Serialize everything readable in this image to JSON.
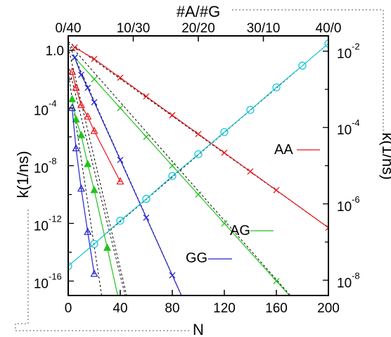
{
  "chart_data": {
    "type": "scatter",
    "top_axis_label": "#A/#G",
    "top_ticks": [
      "0/40",
      "10/30",
      "20/20",
      "30/10",
      "40/0"
    ],
    "x_label": "N",
    "x_ticks": [
      "0",
      "40",
      "80",
      "120",
      "160",
      "200"
    ],
    "x_range": [
      0,
      200
    ],
    "y_label_left": "k(1/ns)",
    "y_left_range_log10": [
      -17,
      1
    ],
    "y_left_ticks": [
      {
        "base": "1.0",
        "exp": ""
      },
      {
        "base": "10",
        "exp": "-4"
      },
      {
        "base": "10",
        "exp": "-8"
      },
      {
        "base": "10",
        "exp": "-12"
      },
      {
        "base": "10",
        "exp": "-16"
      }
    ],
    "y_label_right": "k(1/ns)",
    "y_right_range_log10": [
      -8.4,
      -1.6
    ],
    "y_right_ticks": [
      {
        "base": "10",
        "exp": "-2"
      },
      {
        "base": "10",
        "exp": "-4"
      },
      {
        "base": "10",
        "exp": "-6"
      },
      {
        "base": "10",
        "exp": "-8"
      }
    ],
    "series_labels": [
      {
        "text": "AA",
        "color": "#e8141a"
      },
      {
        "text": "AG",
        "color": "#22c21c"
      },
      {
        "text": "GG",
        "color": "#2222cc"
      }
    ],
    "series": [
      {
        "name": "AA",
        "axis": "left",
        "marker": "x",
        "color": "#e8141a",
        "linestyle": "solid",
        "x": [
          5,
          20,
          40,
          60,
          80,
          100,
          120,
          140,
          160,
          200
        ],
        "log10_y": [
          0.2,
          -0.6,
          -1.9,
          -3.2,
          -4.5,
          -5.8,
          -7.1,
          -8.4,
          -9.7,
          -12.3
        ]
      },
      {
        "name": "AG",
        "axis": "left",
        "marker": "x",
        "color": "#22c21c",
        "linestyle": "solid",
        "x": [
          5,
          20,
          40,
          60,
          80,
          100,
          120,
          160,
          200
        ],
        "log10_y": [
          -0.5,
          -2.0,
          -4.0,
          -6.0,
          -8.0,
          -10.0,
          -12.0,
          -16.0,
          -20.0
        ]
      },
      {
        "name": "GG",
        "axis": "left",
        "marker": "x",
        "color": "#2222cc",
        "linestyle": "solid",
        "x": [
          5,
          10,
          15,
          20,
          40,
          60,
          80,
          100
        ],
        "log10_y": [
          -0.5,
          -1.7,
          -2.6,
          -3.6,
          -7.6,
          -11.6,
          -15.6,
          -19.6
        ]
      },
      {
        "name": "",
        "axis": "left",
        "marker": "triangle-open",
        "color": "#e8141a",
        "linestyle": "solid",
        "x": [
          3,
          6,
          10,
          15,
          20,
          40
        ],
        "log10_y": [
          -1.5,
          -2.6,
          -3.8,
          -4.6,
          -5.6,
          -9.1
        ]
      },
      {
        "name": "",
        "axis": "left",
        "marker": "triangle-filled",
        "color": "#22c21c",
        "linestyle": "solid",
        "x": [
          3,
          6,
          10,
          15,
          20,
          30,
          40
        ],
        "log10_y": [
          -3.4,
          -4.8,
          -5.9,
          -7.9,
          -9.7,
          -13.7,
          -17.8
        ]
      },
      {
        "name": "",
        "axis": "left",
        "marker": "triangle-open",
        "color": "#2222cc",
        "linestyle": "solid",
        "x": [
          3,
          6,
          10,
          15,
          20
        ],
        "log10_y": [
          -4.0,
          -6.8,
          -9.6,
          -12.6,
          -15.5
        ]
      },
      {
        "name": "",
        "axis": "right",
        "marker": "circle-open",
        "color": "#1cc8d8",
        "linestyle": "solid",
        "x": [
          0,
          20,
          40,
          60,
          80,
          100,
          120,
          140,
          160,
          180,
          200
        ],
        "log10_y": [
          -7.63,
          -7.05,
          -6.44,
          -5.87,
          -5.27,
          -4.7,
          -4.12,
          -3.54,
          -2.95,
          -2.38,
          -1.8
        ]
      }
    ],
    "fit_lines": [
      {
        "axis": "left",
        "x": [
          0,
          200
        ],
        "log10_y": [
          0.6,
          -12.3
        ]
      },
      {
        "axis": "left",
        "x": [
          0,
          200
        ],
        "log10_y": [
          0.5,
          -20.0
        ]
      },
      {
        "axis": "left",
        "x": [
          0,
          100
        ],
        "log10_y": [
          0.5,
          -19.6
        ]
      },
      {
        "axis": "left",
        "x": [
          0,
          47
        ],
        "log10_y": [
          0.2,
          -17.8
        ]
      },
      {
        "axis": "left",
        "x": [
          0,
          46
        ],
        "log10_y": [
          -1.0,
          -17.8
        ]
      },
      {
        "axis": "left",
        "x": [
          0,
          27
        ],
        "log10_y": [
          -1.5,
          -17.8
        ]
      },
      {
        "axis": "right",
        "x": [
          0,
          200
        ],
        "log10_y": [
          -7.63,
          -1.8
        ]
      }
    ]
  }
}
